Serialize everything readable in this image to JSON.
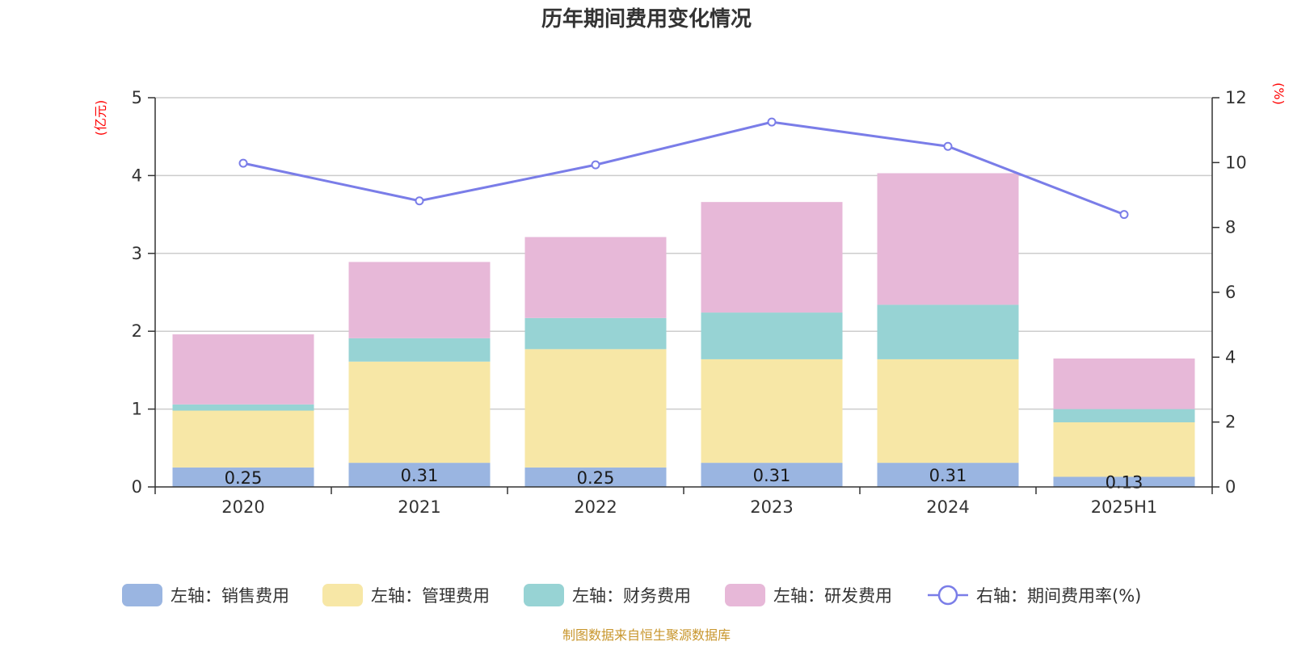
{
  "chart_data": {
    "type": "bar",
    "title": "历年期间费用变化情况",
    "left_unit": "(亿元)",
    "right_unit": "(%)",
    "categories": [
      "2020",
      "2021",
      "2022",
      "2023",
      "2024",
      "2025H1"
    ],
    "left_axis": {
      "ylim": [
        0,
        5
      ],
      "ticks": [
        "0",
        "1",
        "2",
        "3",
        "4",
        "5"
      ]
    },
    "right_axis": {
      "ylim": [
        0,
        12
      ],
      "ticks": [
        "0",
        "2",
        "4",
        "6",
        "8",
        "10",
        "12"
      ]
    },
    "grid": true,
    "stacked": true,
    "series": [
      {
        "name": "左轴：销售费用",
        "axis": "left",
        "color": "#9ab5e1",
        "values": [
          0.25,
          0.31,
          0.25,
          0.31,
          0.31,
          0.13
        ],
        "labels": [
          "0.25",
          "0.31",
          "0.25",
          "0.31",
          "0.31",
          "0.13"
        ]
      },
      {
        "name": "左轴：管理费用",
        "axis": "left",
        "color": "#f7e7a6",
        "values": [
          0.73,
          1.3,
          1.52,
          1.33,
          1.33,
          0.7
        ]
      },
      {
        "name": "左轴：财务费用",
        "axis": "left",
        "color": "#97d3d4",
        "values": [
          0.08,
          0.3,
          0.4,
          0.6,
          0.7,
          0.17
        ]
      },
      {
        "name": "左轴：研发费用",
        "axis": "left",
        "color": "#e7b8d8",
        "values": [
          0.9,
          0.98,
          1.04,
          1.42,
          1.69,
          0.65
        ]
      },
      {
        "name": "右轴：期间费用率(%)",
        "axis": "right",
        "type": "line",
        "color": "#7a7de8",
        "values": [
          9.98,
          8.82,
          9.93,
          11.25,
          10.5,
          8.4
        ]
      }
    ],
    "legend_position": "bottom",
    "source": "制图数据来自恒生聚源数据库"
  }
}
